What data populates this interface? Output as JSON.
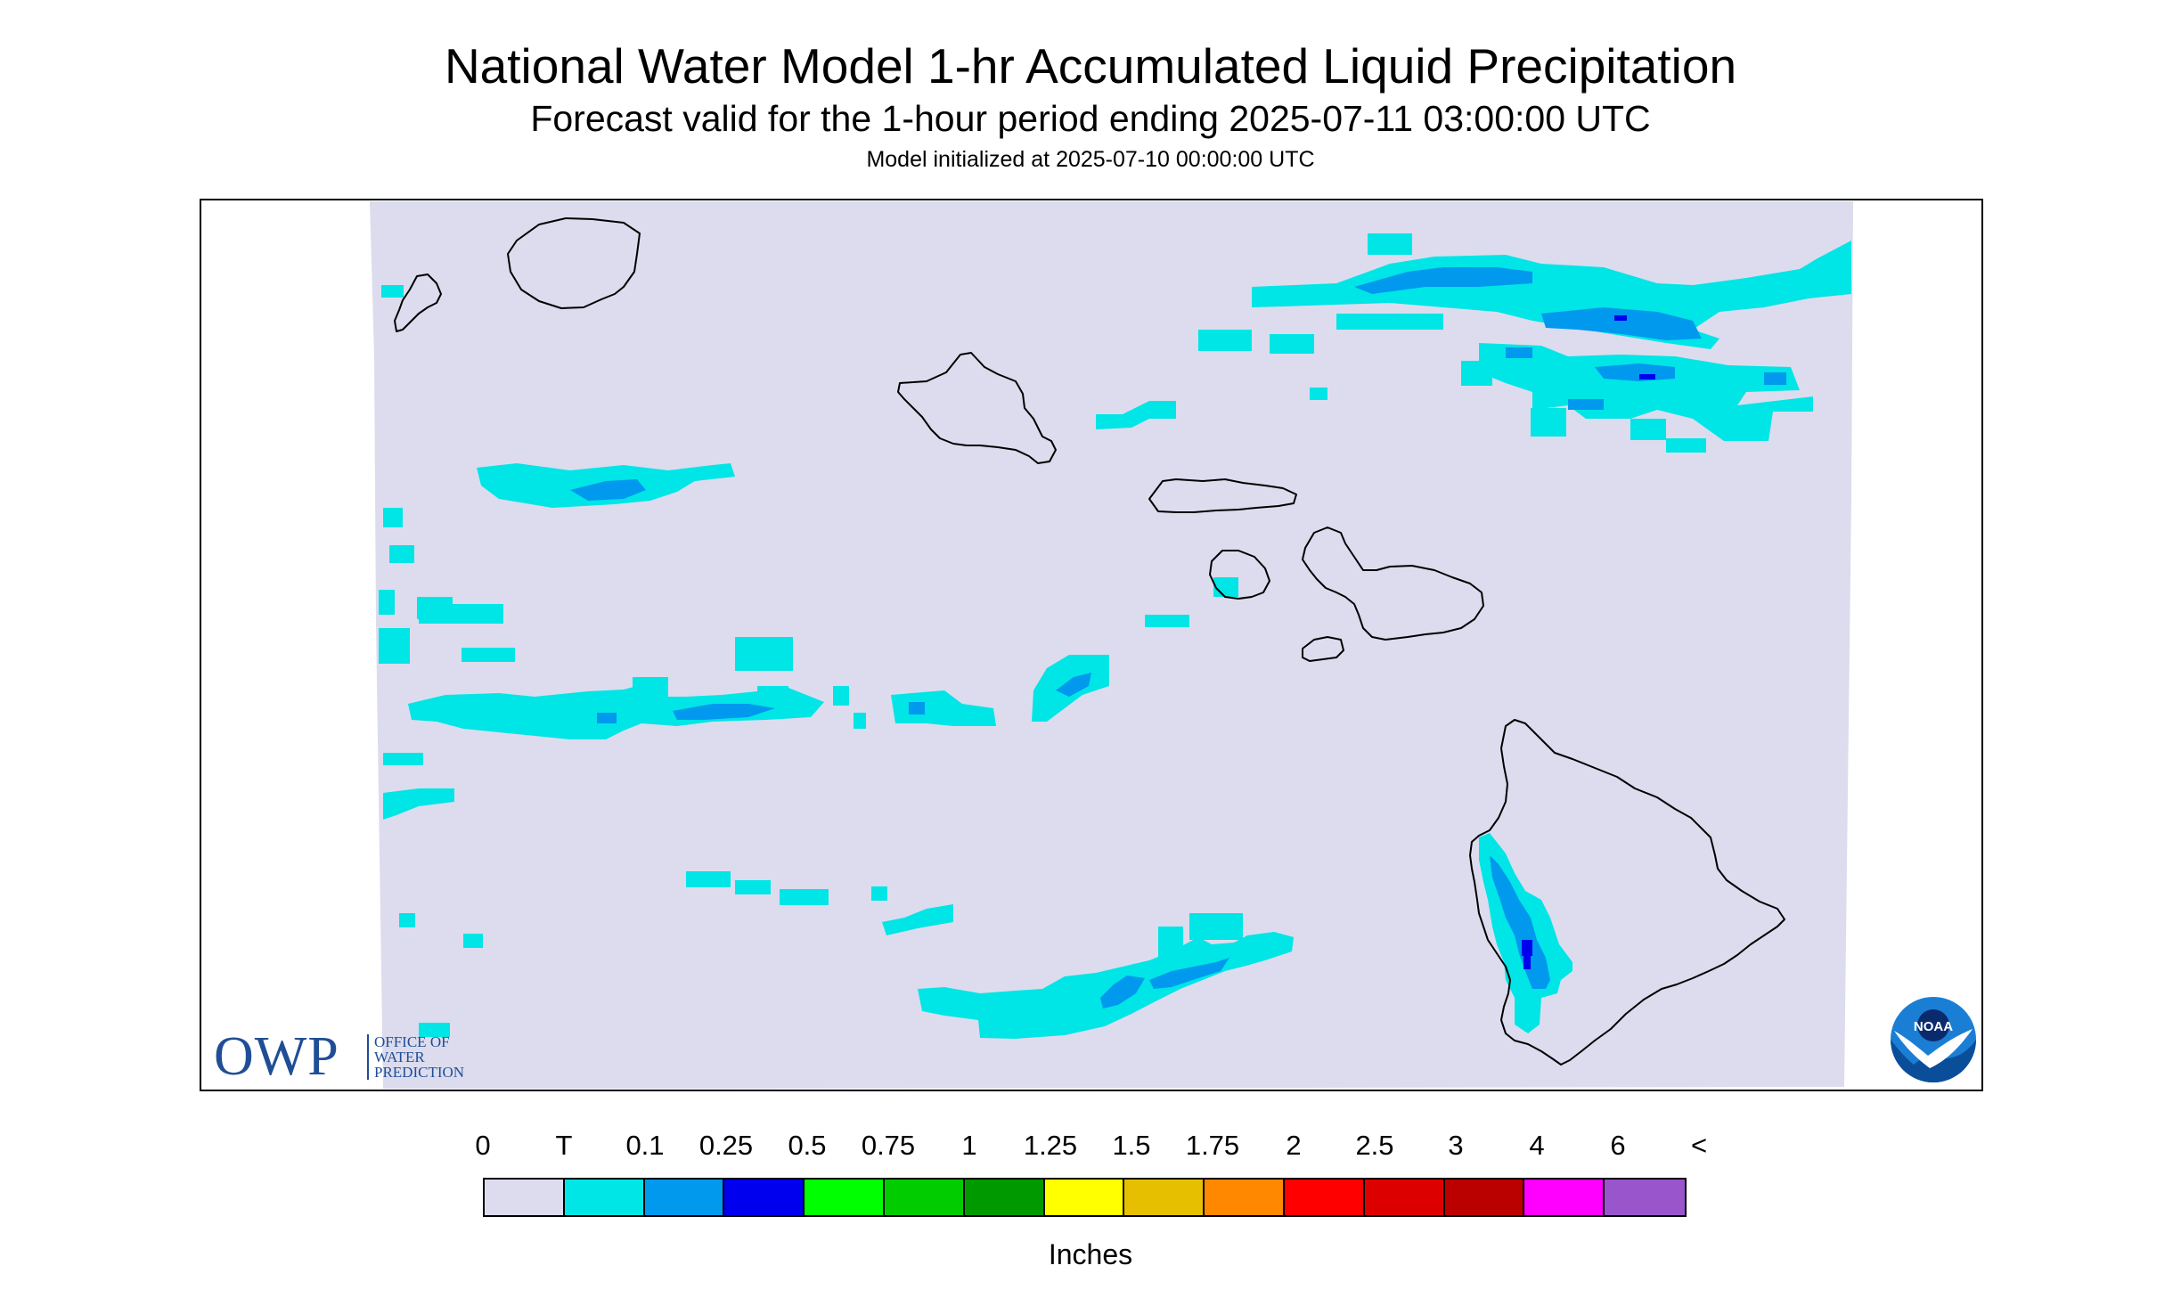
{
  "header": {
    "title": "National Water Model 1-hr Accumulated Liquid Precipitation",
    "subtitle": "Forecast valid for the 1-hour period ending 2025-07-11 03:00:00 UTC",
    "init": "Model initialized at 2025-07-10 00:00:00 UTC"
  },
  "legend": {
    "labels": [
      "0",
      "T",
      "0.1",
      "0.25",
      "0.5",
      "0.75",
      "1",
      "1.25",
      "1.5",
      "1.75",
      "2",
      "2.5",
      "3",
      "4",
      "6",
      "<"
    ],
    "colors": [
      "#dcdcee",
      "#00e5e5",
      "#0099ee",
      "#0000ee",
      "#00ff00",
      "#00cc00",
      "#009900",
      "#ffff00",
      "#e6c000",
      "#ff8800",
      "#ff0000",
      "#dd0000",
      "#bb0000",
      "#ff00ff",
      "#9955cc"
    ],
    "units": "Inches"
  },
  "logos": {
    "owp_mark": "OWP",
    "owp_line1": "OFFICE OF",
    "owp_line2": "WATER",
    "owp_line3": "PREDICTION",
    "noaa": "NOAA"
  },
  "colors": {
    "background_field": "#dcdcee",
    "trace": "#00e5e5",
    "light": "#0099ee",
    "moderate": "#0000ee",
    "coast": "#000000"
  }
}
